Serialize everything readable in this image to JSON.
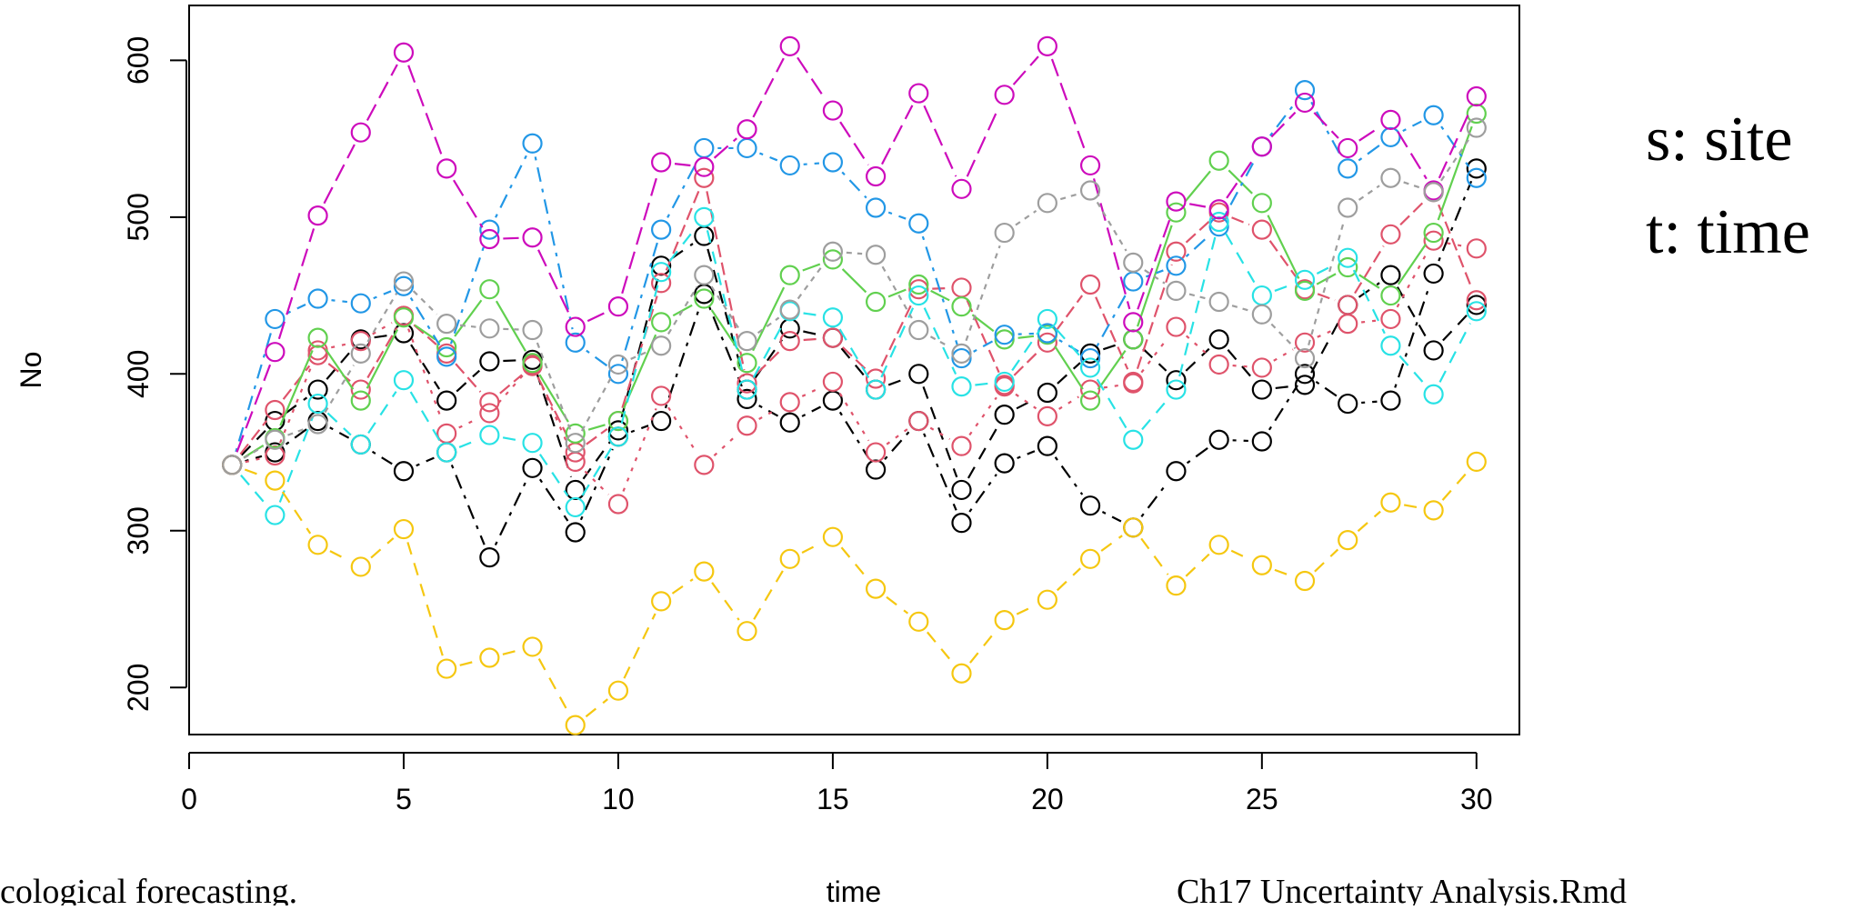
{
  "chart_data": {
    "type": "line",
    "title": "",
    "xlabel": "time",
    "ylabel": "No",
    "xlim": [
      0,
      31
    ],
    "ylim": [
      170,
      635
    ],
    "xticks": [
      0,
      5,
      10,
      15,
      20,
      25,
      30
    ],
    "yticks": [
      200,
      300,
      400,
      500,
      600
    ],
    "x": [
      1,
      2,
      3,
      4,
      5,
      6,
      7,
      8,
      9,
      10,
      11,
      12,
      13,
      14,
      15,
      16,
      17,
      18,
      19,
      20,
      21,
      22,
      23,
      24,
      25,
      26,
      27,
      28,
      29,
      30
    ],
    "grid": false,
    "legend": "none",
    "markers": "open-circle",
    "series": [
      {
        "color": "#000000",
        "dash": "14,10",
        "values": [
          342,
          370,
          390,
          422,
          426,
          383,
          408,
          409,
          326,
          364,
          469,
          488,
          390,
          429,
          423,
          390,
          400,
          326,
          374,
          388,
          413,
          422,
          396,
          422,
          390,
          393,
          444,
          463,
          415,
          444
        ]
      },
      {
        "color": "#000000",
        "dash": "4,8,16,8",
        "values": [
          342,
          350,
          370,
          355,
          338,
          350,
          283,
          340,
          299,
          360,
          370,
          451,
          384,
          369,
          383,
          339,
          370,
          305,
          343,
          354,
          316,
          302,
          338,
          358,
          357,
          400,
          381,
          383,
          464,
          531
        ]
      },
      {
        "color": "#DF536B",
        "dash": "4,8",
        "values": [
          342,
          348,
          415,
          421,
          437,
          362,
          375,
          406,
          344,
          317,
          386,
          342,
          367,
          382,
          395,
          350,
          370,
          354,
          392,
          373,
          390,
          394,
          430,
          406,
          404,
          420,
          432,
          435,
          485,
          480
        ]
      },
      {
        "color": "#DF536B",
        "dash": "14,6",
        "values": [
          342,
          377,
          412,
          390,
          437,
          413,
          382,
          405,
          350,
          370,
          458,
          525,
          394,
          421,
          423,
          397,
          454,
          455,
          393,
          420,
          457,
          395,
          478,
          503,
          492,
          454,
          444,
          489,
          516,
          447
        ]
      },
      {
        "color": "#61D04F",
        "dash": "none",
        "values": [
          342,
          359,
          423,
          383,
          436,
          417,
          454,
          407,
          362,
          370,
          433,
          448,
          407,
          463,
          473,
          446,
          457,
          443,
          422,
          425,
          383,
          422,
          503,
          536,
          509,
          453,
          468,
          450,
          490,
          566
        ]
      },
      {
        "color": "#2297E6",
        "dash": "4,8,16,8",
        "values": [
          342,
          435,
          448,
          445,
          456,
          411,
          492,
          547,
          420,
          400,
          492,
          544,
          544,
          533,
          535,
          506,
          496,
          410,
          425,
          426,
          410,
          459,
          469,
          494,
          545,
          581,
          531,
          551,
          565,
          525
        ]
      },
      {
        "color": "#28E2E5",
        "dash": "14,10",
        "values": [
          342,
          310,
          381,
          355,
          396,
          350,
          361,
          356,
          315,
          360,
          465,
          500,
          390,
          440,
          436,
          390,
          450,
          392,
          395,
          435,
          404,
          358,
          390,
          497,
          450,
          460,
          474,
          418,
          387,
          440
        ]
      },
      {
        "color": "#CD0BBC",
        "dash": "20,8",
        "values": [
          342,
          414,
          501,
          554,
          605,
          531,
          486,
          487,
          430,
          443,
          535,
          532,
          556,
          609,
          568,
          526,
          579,
          518,
          578,
          609,
          533,
          433,
          510,
          505,
          545,
          573,
          544,
          562,
          517,
          577
        ]
      },
      {
        "color": "#F5C710",
        "dash": "14,10",
        "values": [
          342,
          332,
          291,
          277,
          301,
          212,
          219,
          226,
          176,
          198,
          255,
          274,
          236,
          282,
          296,
          263,
          242,
          209,
          243,
          256,
          282,
          302,
          265,
          291,
          278,
          268,
          294,
          318,
          313,
          344
        ]
      },
      {
        "color": "#9E9E9E",
        "dash": "6,6",
        "values": [
          342,
          358,
          368,
          413,
          459,
          432,
          429,
          428,
          356,
          406,
          418,
          463,
          421,
          441,
          478,
          476,
          428,
          413,
          490,
          509,
          517,
          471,
          453,
          446,
          438,
          410,
          506,
          525,
          516,
          557
        ]
      }
    ]
  },
  "annotations": {
    "legend_site": "s: site",
    "legend_time": "t: time",
    "footer_left": "cological forecasting.",
    "footer_right": "Ch17  Uncertainty  Analysis.Rmd"
  }
}
